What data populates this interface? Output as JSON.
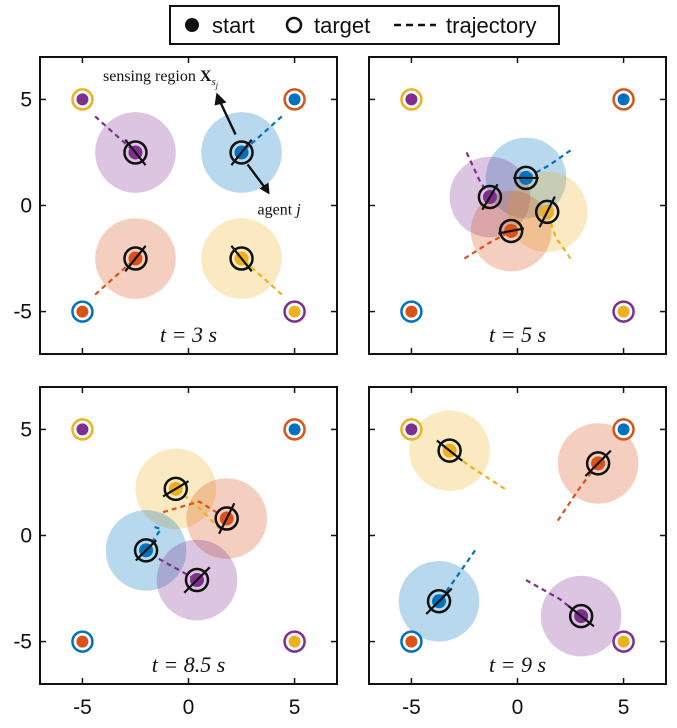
{
  "legend": {
    "items": [
      {
        "symbol": "filled-circle",
        "label": "start"
      },
      {
        "symbol": "open-circle",
        "label": "target"
      },
      {
        "symbol": "dashed-line",
        "label": "trajectory"
      }
    ]
  },
  "colors": {
    "blue": "#0072BD",
    "orange": "#D95319",
    "yellow": "#EDB120",
    "purple": "#7E2F8E"
  },
  "chart_data": [
    {
      "type": "scatter",
      "panel_label": "t = 3 s",
      "xlim": [
        -7,
        7
      ],
      "ylim": [
        -7,
        7
      ],
      "xticks": [
        "-5",
        "0",
        "5"
      ],
      "yticks": [
        "5",
        "0",
        "-5"
      ],
      "show_xticks": false,
      "show_yticks": true,
      "markers": [
        {
          "color": "yellow",
          "target": [
            -5,
            5
          ],
          "start": [
            5,
            -5
          ]
        },
        {
          "color": "orange",
          "target": [
            5,
            5
          ],
          "start": [
            -5,
            -5
          ]
        },
        {
          "color": "blue",
          "target": [
            -5,
            -5
          ],
          "start": [
            5,
            5
          ]
        },
        {
          "color": "purple",
          "target": [
            5,
            -5
          ],
          "start": [
            -5,
            5
          ]
        }
      ],
      "agents": [
        {
          "color": "purple",
          "pos": [
            -2.5,
            2.5
          ],
          "radius": 1.9,
          "heading": [
            0.4,
            -0.5
          ],
          "trail": [
            [
              -4.4,
              4.2
            ],
            [
              -3.4,
              3.3
            ]
          ]
        },
        {
          "color": "blue",
          "pos": [
            2.5,
            2.5
          ],
          "radius": 1.9,
          "heading": [
            -0.4,
            -0.5
          ],
          "trail": [
            [
              4.4,
              4.2
            ],
            [
              3.4,
              3.3
            ]
          ]
        },
        {
          "color": "orange",
          "pos": [
            -2.5,
            -2.5
          ],
          "radius": 1.9,
          "heading": [
            0.4,
            0.5
          ],
          "trail": [
            [
              -4.4,
              -4.2
            ],
            [
              -3.4,
              -3.3
            ]
          ]
        },
        {
          "color": "yellow",
          "pos": [
            2.5,
            -2.5
          ],
          "radius": 1.9,
          "heading": [
            -0.4,
            0.5
          ],
          "trail": [
            [
              4.4,
              -4.2
            ],
            [
              3.4,
              -3.3
            ]
          ]
        }
      ],
      "annotations": {
        "sensing_label": "sensing region ",
        "sensing_math": "X",
        "sensing_sub": "s",
        "sensing_subsub": "j",
        "agent_label": "agent ",
        "agent_math": "j"
      }
    },
    {
      "type": "scatter",
      "panel_label": "t = 5 s",
      "xlim": [
        -7,
        7
      ],
      "ylim": [
        -7,
        7
      ],
      "xticks": [
        "-5",
        "0",
        "5"
      ],
      "yticks": [
        "5",
        "0",
        "-5"
      ],
      "show_xticks": false,
      "show_yticks": false,
      "markers": [
        {
          "color": "yellow",
          "target": [
            -5,
            5
          ],
          "start": [
            5,
            -5
          ]
        },
        {
          "color": "orange",
          "target": [
            5,
            5
          ],
          "start": [
            -5,
            -5
          ]
        },
        {
          "color": "blue",
          "target": [
            -5,
            -5
          ],
          "start": [
            5,
            5
          ]
        },
        {
          "color": "purple",
          "target": [
            5,
            -5
          ],
          "start": [
            -5,
            5
          ]
        }
      ],
      "agents": [
        {
          "color": "blue",
          "pos": [
            0.4,
            1.3
          ],
          "radius": 1.9,
          "heading": [
            -0.5,
            0
          ],
          "trail": [
            [
              2.5,
              2.6
            ],
            [
              1.5,
              1.9
            ]
          ]
        },
        {
          "color": "purple",
          "pos": [
            -1.3,
            0.4
          ],
          "radius": 1.9,
          "heading": [
            0.3,
            0.5
          ],
          "trail": [
            [
              -2.4,
              2.5
            ],
            [
              -1.8,
              1.2
            ]
          ]
        },
        {
          "color": "yellow",
          "pos": [
            1.4,
            -0.3
          ],
          "radius": 1.9,
          "heading": [
            -0.3,
            -0.6
          ],
          "trail": [
            [
              2.5,
              -2.5
            ],
            [
              1.8,
              -1.5
            ]
          ]
        },
        {
          "color": "orange",
          "pos": [
            -0.3,
            -1.2
          ],
          "radius": 1.9,
          "heading": [
            0.5,
            0.1
          ],
          "trail": [
            [
              -2.5,
              -2.5
            ],
            [
              -1.4,
              -1.8
            ]
          ]
        }
      ]
    },
    {
      "type": "scatter",
      "panel_label": "t = 8.5 s",
      "xlim": [
        -7,
        7
      ],
      "ylim": [
        -7,
        7
      ],
      "xticks": [
        "-5",
        "0",
        "5"
      ],
      "yticks": [
        "5",
        "0",
        "-5"
      ],
      "show_xticks": true,
      "show_yticks": true,
      "markers": [
        {
          "color": "yellow",
          "target": [
            -5,
            5
          ],
          "start": [
            5,
            -5
          ]
        },
        {
          "color": "orange",
          "target": [
            5,
            5
          ],
          "start": [
            -5,
            -5
          ]
        },
        {
          "color": "blue",
          "target": [
            -5,
            -5
          ],
          "start": [
            5,
            5
          ]
        },
        {
          "color": "purple",
          "target": [
            5,
            -5
          ],
          "start": [
            -5,
            5
          ]
        }
      ],
      "agents": [
        {
          "color": "yellow",
          "pos": [
            -0.6,
            2.2
          ],
          "radius": 1.9,
          "heading": [
            0.5,
            0.3
          ],
          "trail": [
            [
              1.5,
              0.3
            ],
            [
              0.4,
              1.4
            ]
          ]
        },
        {
          "color": "orange",
          "pos": [
            1.8,
            0.8
          ],
          "radius": 1.9,
          "heading": [
            -0.3,
            -0.6
          ],
          "trail": [
            [
              -1.2,
              1.1
            ],
            [
              0.5,
              1.6
            ]
          ]
        },
        {
          "color": "blue",
          "pos": [
            -2.0,
            -0.7
          ],
          "radius": 1.9,
          "heading": [
            -0.4,
            -0.4
          ],
          "trail": [
            [
              -1.6,
              0.4
            ],
            [
              -1.3,
              0.3
            ]
          ]
        },
        {
          "color": "purple",
          "pos": [
            0.4,
            -2.1
          ],
          "radius": 1.9,
          "heading": [
            0.5,
            0.5
          ],
          "trail": [
            [
              -1.4,
              -1.1
            ],
            [
              -0.5,
              -1.6
            ]
          ]
        }
      ]
    },
    {
      "type": "scatter",
      "panel_label": "t = 9 s",
      "xlim": [
        -7,
        7
      ],
      "ylim": [
        -7,
        7
      ],
      "xticks": [
        "-5",
        "0",
        "5"
      ],
      "yticks": [
        "5",
        "0",
        "-5"
      ],
      "show_xticks": true,
      "show_yticks": false,
      "markers": [
        {
          "color": "yellow",
          "target": [
            -5,
            5
          ],
          "start": [
            5,
            -5
          ]
        },
        {
          "color": "orange",
          "target": [
            5,
            5
          ],
          "start": [
            -5,
            -5
          ]
        },
        {
          "color": "blue",
          "target": [
            -5,
            -5
          ],
          "start": [
            5,
            5
          ]
        },
        {
          "color": "purple",
          "target": [
            5,
            -5
          ],
          "start": [
            -5,
            5
          ]
        }
      ],
      "agents": [
        {
          "color": "yellow",
          "pos": [
            -3.2,
            4.0
          ],
          "radius": 1.9,
          "heading": [
            -0.5,
            0.4
          ],
          "trail": [
            [
              -0.6,
              2.2
            ],
            [
              -2.3,
              3.3
            ]
          ]
        },
        {
          "color": "orange",
          "pos": [
            3.8,
            3.4
          ],
          "radius": 1.9,
          "heading": [
            0.5,
            0.5
          ],
          "trail": [
            [
              1.9,
              0.7
            ],
            [
              2.9,
              2.2
            ]
          ]
        },
        {
          "color": "blue",
          "pos": [
            -3.7,
            -3.1
          ],
          "radius": 1.9,
          "heading": [
            -0.5,
            -0.5
          ],
          "trail": [
            [
              -2.0,
              -0.7
            ],
            [
              -2.9,
              -2.0
            ]
          ]
        },
        {
          "color": "purple",
          "pos": [
            3.0,
            -3.8
          ],
          "radius": 1.9,
          "heading": [
            0.5,
            -0.4
          ],
          "trail": [
            [
              0.4,
              -2.1
            ],
            [
              2.0,
              -3.0
            ]
          ]
        }
      ]
    }
  ]
}
